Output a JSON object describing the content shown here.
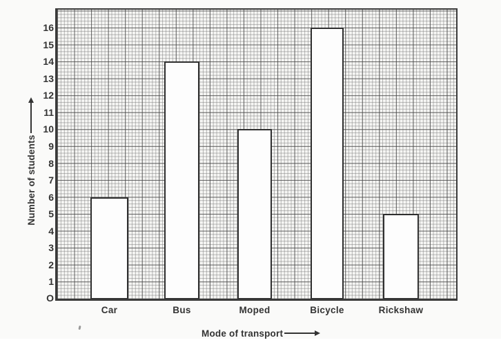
{
  "chart_data": {
    "type": "bar",
    "title": "",
    "categories": [
      "Car",
      "Bus",
      "Moped",
      "Bicycle",
      "Rickshaw"
    ],
    "values": [
      6,
      14,
      10,
      16,
      5
    ],
    "xlabel": "Mode of transport",
    "ylabel": "Number of students",
    "ylim": [
      0,
      17
    ],
    "y_ticks": [
      "1",
      "2",
      "3",
      "4",
      "5",
      "6",
      "7",
      "8",
      "9",
      "10",
      "11",
      "12",
      "13",
      "14",
      "15",
      "16"
    ],
    "origin_label": "O",
    "grid": "graph-paper (minor lines every 0.2 units, major lines every 1 unit)",
    "legend": "none",
    "bar_fill": "#fdfdfd",
    "bar_border": "#2e2e2e",
    "grid_minor_color": "#828282",
    "grid_major_color": "#464646",
    "text_color": "#333333"
  }
}
